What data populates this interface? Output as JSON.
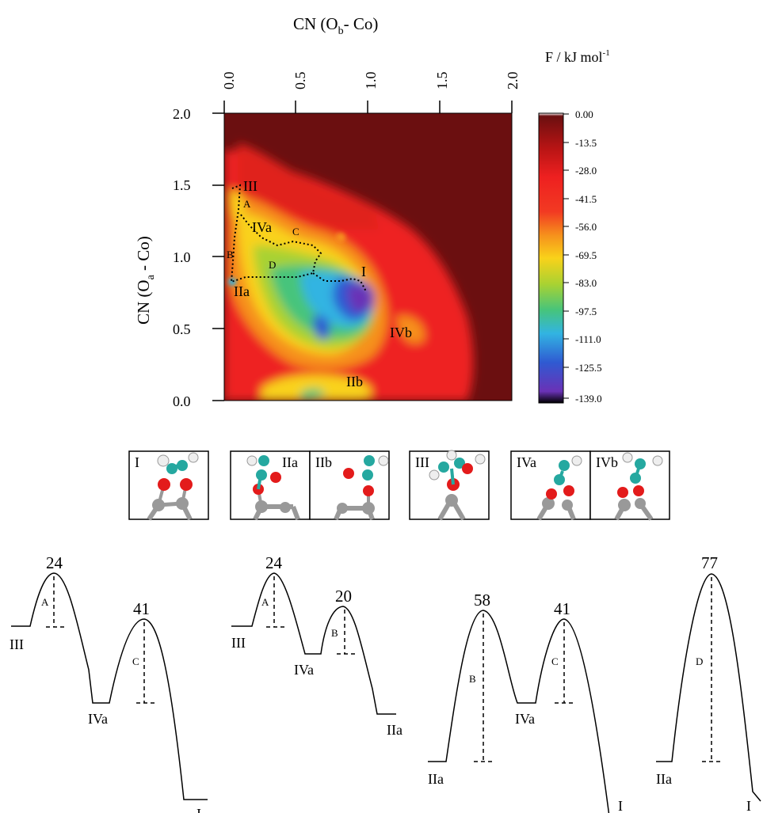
{
  "top_axis": {
    "title_main": "CN (O",
    "title_sub": "b",
    "title_tail": "- Co)",
    "ticks": [
      "0.0",
      "0.5",
      "1.0",
      "1.5",
      "2.0"
    ]
  },
  "left_axis": {
    "title_main": "CN (O",
    "title_sub": "a",
    "title_tail": " - Co)",
    "ticks": [
      "2.0",
      "1.5",
      "1.0",
      "0.5",
      "0.0"
    ]
  },
  "colorbar": {
    "title_main": "F / kJ mol",
    "title_sup": "-1",
    "ticks": [
      "0.00",
      "-13.5",
      "-28.0",
      "-41.5",
      "-56.0",
      "-69.5",
      "-83.0",
      "-97.5",
      "-111.0",
      "-125.5",
      "-139.0"
    ],
    "colors": [
      "#ffffff",
      "#6b0f10",
      "#b71414",
      "#ee2020",
      "#f23a22",
      "#f6901c",
      "#f9d21a",
      "#a9d232",
      "#46c47c",
      "#32b4e2",
      "#2f5ad2",
      "#6a32b6",
      "#000000"
    ]
  },
  "map_labels": {
    "III": "III",
    "A": "A",
    "IVa": "IVa",
    "C": "C",
    "B": "B",
    "D": "D",
    "I": "I",
    "IIa": "IIa",
    "IVb": "IVb",
    "IIb": "IIb"
  },
  "structures": [
    {
      "label": "I"
    },
    {
      "label": "IIa"
    },
    {
      "label": "IIb"
    },
    {
      "label": "III"
    },
    {
      "label": "IVa"
    },
    {
      "label": "IVb"
    }
  ],
  "chart_data": [
    {
      "type": "heatmap",
      "title": "",
      "xlabel": "CN (Ob- Co)",
      "ylabel": "CN (Oa - Co)",
      "xlim": [
        0.0,
        2.0
      ],
      "ylim": [
        0.0,
        2.0
      ],
      "colorbar_label": "F / kJ mol-1",
      "colorbar_range": [
        -139.0,
        0.0
      ],
      "labeled_states": [
        "III",
        "IVa",
        "I",
        "IIa",
        "IVb",
        "IIb"
      ],
      "labeled_paths": [
        "A",
        "B",
        "C",
        "D"
      ]
    },
    {
      "type": "line",
      "title": "",
      "profiles": [
        {
          "states": [
            "III",
            "IVa",
            "I"
          ],
          "barriers": [
            {
              "label": "A",
              "value": 24
            },
            {
              "label": "C",
              "value": 41
            }
          ]
        },
        {
          "states": [
            "III",
            "IVa",
            "IIa"
          ],
          "barriers": [
            {
              "label": "A",
              "value": 24
            },
            {
              "label": "B",
              "value": 20
            }
          ]
        },
        {
          "states": [
            "IIa",
            "IVa",
            "I"
          ],
          "barriers": [
            {
              "label": "B",
              "value": 58
            },
            {
              "label": "C",
              "value": 41
            }
          ]
        },
        {
          "states": [
            "IIa",
            "I"
          ],
          "barriers": [
            {
              "label": "D",
              "value": 77
            }
          ]
        }
      ]
    }
  ]
}
